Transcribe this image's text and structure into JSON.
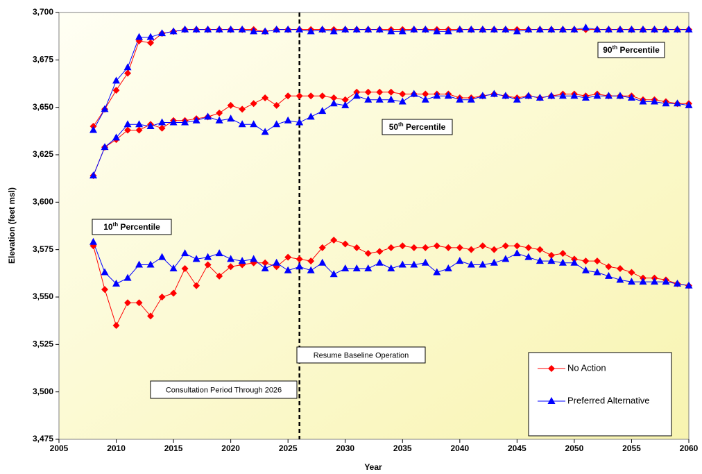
{
  "chart_data": {
    "type": "line",
    "x_label": "Year",
    "y_label": "Elevation (feet msl)",
    "xlim": [
      2005,
      2060
    ],
    "xticks": [
      2005,
      2010,
      2015,
      2020,
      2025,
      2030,
      2035,
      2040,
      2045,
      2050,
      2055,
      2060
    ],
    "ylim": [
      3475,
      3700
    ],
    "yticks": [
      {
        "value": 3475,
        "label": "3,475"
      },
      {
        "value": 3500,
        "label": "3,500"
      },
      {
        "value": 3525,
        "label": "3,525"
      },
      {
        "value": 3550,
        "label": "3,550"
      },
      {
        "value": 3575,
        "label": "3,575"
      },
      {
        "value": 3600,
        "label": "3,600"
      },
      {
        "value": 3625,
        "label": "3,625"
      },
      {
        "value": 3650,
        "label": "3,650"
      },
      {
        "value": 3675,
        "label": "3,675"
      },
      {
        "value": 3700,
        "label": "3,700"
      }
    ],
    "x": [
      2008,
      2009,
      2010,
      2011,
      2012,
      2013,
      2014,
      2015,
      2016,
      2017,
      2018,
      2019,
      2020,
      2021,
      2022,
      2023,
      2024,
      2025,
      2026,
      2027,
      2028,
      2029,
      2030,
      2031,
      2032,
      2033,
      2034,
      2035,
      2036,
      2037,
      2038,
      2039,
      2040,
      2041,
      2042,
      2043,
      2044,
      2045,
      2046,
      2047,
      2048,
      2049,
      2050,
      2051,
      2052,
      2053,
      2054,
      2055,
      2056,
      2057,
      2058,
      2059,
      2060
    ],
    "series": [
      {
        "name": "No Action",
        "color": "#ff0000",
        "marker": "diamond",
        "values": [
          3640,
          3649,
          3659,
          3668,
          3685,
          3684,
          3689,
          3690,
          3691,
          3691,
          3691,
          3691,
          3691,
          3691,
          3691,
          3690,
          3691,
          3691,
          3691,
          3691,
          3691,
          3691,
          3691,
          3691,
          3691,
          3691,
          3691,
          3691,
          3691,
          3691,
          3691,
          3691,
          3691,
          3691,
          3691,
          3691,
          3691,
          3691,
          3691,
          3691,
          3691,
          3691,
          3691,
          3691,
          3691,
          3691,
          3691,
          3691,
          3691,
          3691,
          3691,
          3691,
          3691
        ]
      },
      {
        "name": "Preferred Alternative",
        "color": "#0000ff",
        "marker": "triangle",
        "values": [
          3638,
          3649,
          3664,
          3671,
          3687,
          3687,
          3689,
          3690,
          3691,
          3691,
          3691,
          3691,
          3691,
          3691,
          3690,
          3690,
          3691,
          3691,
          3691,
          3690,
          3691,
          3690,
          3691,
          3691,
          3691,
          3691,
          3690,
          3690,
          3691,
          3691,
          3690,
          3690,
          3691,
          3691,
          3691,
          3691,
          3691,
          3690,
          3691,
          3691,
          3691,
          3691,
          3691,
          3692,
          3691,
          3691,
          3691,
          3691,
          3691,
          3691,
          3691,
          3691,
          3691
        ]
      },
      {
        "name": "No Action",
        "color": "#ff0000",
        "marker": "diamond",
        "values": [
          3614,
          3629,
          3633,
          3638,
          3638,
          3641,
          3639,
          3643,
          3643,
          3644,
          3645,
          3647,
          3651,
          3649,
          3652,
          3655,
          3651,
          3656,
          3656,
          3656,
          3656,
          3655,
          3654,
          3658,
          3658,
          3658,
          3658,
          3657,
          3657,
          3657,
          3657,
          3657,
          3655,
          3655,
          3656,
          3657,
          3656,
          3655,
          3656,
          3655,
          3656,
          3657,
          3657,
          3656,
          3657,
          3656,
          3656,
          3656,
          3654,
          3654,
          3653,
          3652,
          3652
        ]
      },
      {
        "name": "Preferred Alternative",
        "color": "#0000ff",
        "marker": "triangle",
        "values": [
          3614,
          3629,
          3634,
          3641,
          3641,
          3640,
          3642,
          3642,
          3642,
          3643,
          3645,
          3643,
          3644,
          3641,
          3641,
          3637,
          3641,
          3643,
          3642,
          3645,
          3648,
          3652,
          3651,
          3656,
          3654,
          3654,
          3654,
          3653,
          3657,
          3654,
          3656,
          3656,
          3654,
          3654,
          3656,
          3657,
          3656,
          3654,
          3656,
          3655,
          3656,
          3656,
          3656,
          3655,
          3656,
          3656,
          3656,
          3655,
          3653,
          3653,
          3652,
          3652,
          3651
        ]
      },
      {
        "name": "No Action",
        "color": "#ff0000",
        "marker": "diamond",
        "values": [
          3577,
          3554,
          3535,
          3547,
          3547,
          3540,
          3550,
          3552,
          3565,
          3556,
          3567,
          3561,
          3566,
          3567,
          3568,
          3568,
          3566,
          3571,
          3570,
          3569,
          3576,
          3580,
          3578,
          3576,
          3573,
          3574,
          3576,
          3577,
          3576,
          3576,
          3577,
          3576,
          3576,
          3575,
          3577,
          3575,
          3577,
          3577,
          3576,
          3575,
          3572,
          3573,
          3570,
          3569,
          3569,
          3566,
          3565,
          3563,
          3560,
          3560,
          3559,
          3557,
          3556
        ]
      },
      {
        "name": "Preferred Alternative",
        "color": "#0000ff",
        "marker": "triangle",
        "values": [
          3579,
          3563,
          3557,
          3560,
          3567,
          3567,
          3571,
          3565,
          3573,
          3570,
          3571,
          3573,
          3570,
          3569,
          3570,
          3565,
          3568,
          3564,
          3566,
          3564,
          3568,
          3562,
          3565,
          3565,
          3565,
          3568,
          3565,
          3567,
          3567,
          3568,
          3563,
          3565,
          3569,
          3567,
          3567,
          3568,
          3570,
          3573,
          3571,
          3569,
          3569,
          3568,
          3568,
          3564,
          3563,
          3561,
          3559,
          3558,
          3558,
          3558,
          3558,
          3557,
          3556
        ]
      }
    ],
    "reference_line": {
      "x": 2026
    },
    "annotations": [
      "90th Percentile",
      "50th Percentile",
      "10th Percentile",
      "Resume Baseline Operation",
      "Consultation Period Through 2026"
    ],
    "legend": "lower right"
  }
}
